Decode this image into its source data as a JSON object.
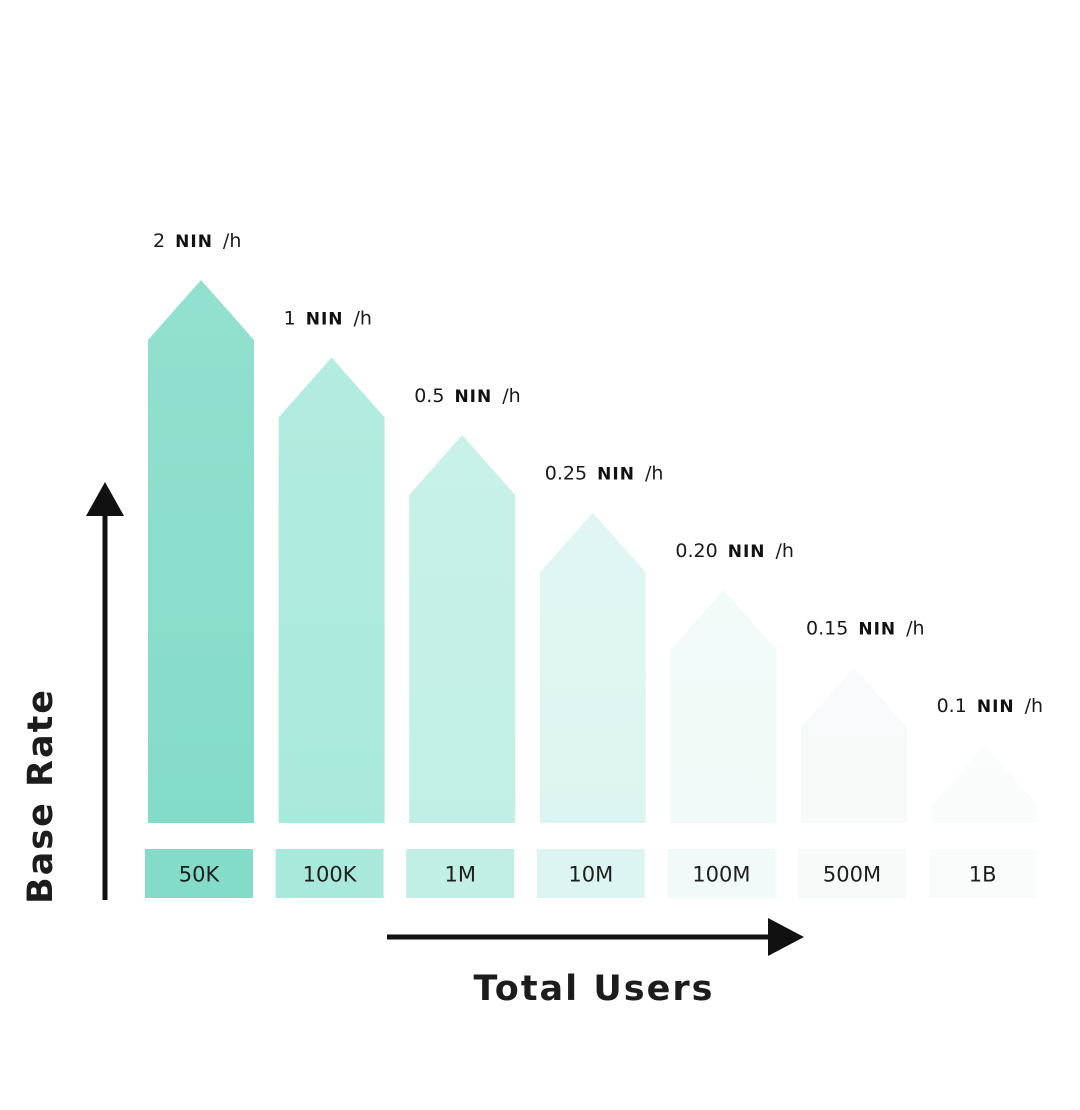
{
  "chart_data": {
    "type": "bar",
    "title": "",
    "xlabel": "Total Users",
    "ylabel": "Base Rate",
    "categories": [
      "50K",
      "100K",
      "1M",
      "10M",
      "100M",
      "500M",
      "1B"
    ],
    "values": [
      2,
      1,
      0.5,
      0.25,
      0.2,
      0.15,
      0.1
    ],
    "value_labels": [
      {
        "amount": "2",
        "token": "NIN",
        "unit": "/h"
      },
      {
        "amount": "1",
        "token": "NIN",
        "unit": "/h"
      },
      {
        "amount": "0.5",
        "token": "NIN",
        "unit": "/h"
      },
      {
        "amount": "0.25",
        "token": "NIN",
        "unit": "/h"
      },
      {
        "amount": "0.20",
        "token": "NIN",
        "unit": "/h"
      },
      {
        "amount": "0.15",
        "token": "NIN",
        "unit": "/h"
      },
      {
        "amount": "0.1",
        "token": "NIN",
        "unit": "/h"
      }
    ],
    "bar_colors": [
      "#84dcc8",
      "#a9e9dc",
      "#c1efe6",
      "#ddf5f2",
      "#f1faf8",
      "#f6fbfa",
      "#fafcfc"
    ],
    "grid": false,
    "legend": "none"
  }
}
